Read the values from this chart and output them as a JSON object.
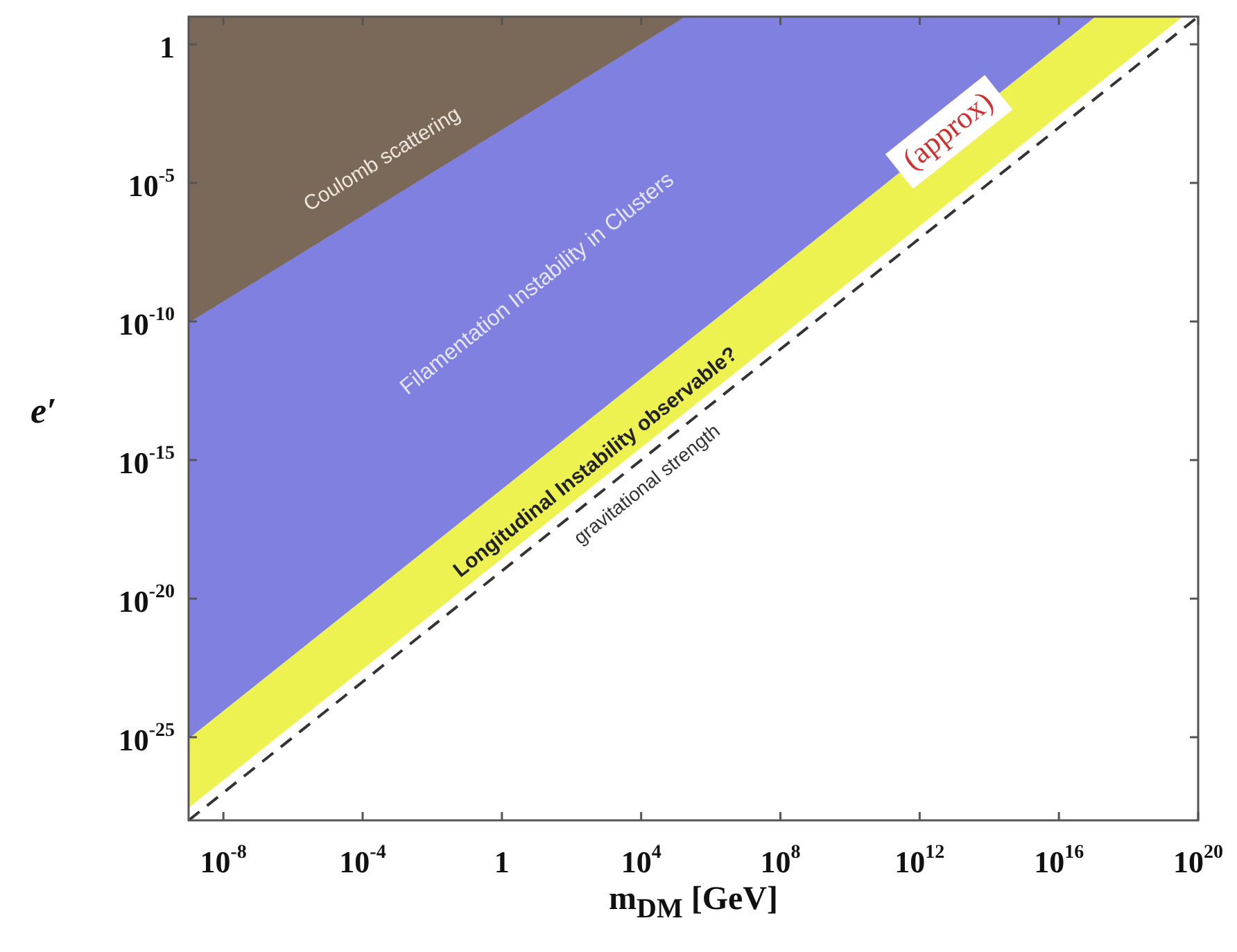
{
  "chart_data": {
    "type": "area",
    "xlabel": "m$_{DM}$ [GeV]",
    "ylabel": "e′",
    "log": "xy",
    "grid": false,
    "legend": false,
    "xlim": [
      1e-09,
      1e+20
    ],
    "ylim": [
      1e-28,
      10
    ],
    "xticks": [
      {
        "value": 1e-08,
        "label": "10$^{-8}$"
      },
      {
        "value": 0.0001,
        "label": "10$^{-4}$"
      },
      1,
      {
        "value": 10000.0,
        "label": "10$^{4}$"
      },
      {
        "value": 100000000.0,
        "label": "10$^{8}$"
      },
      {
        "value": 1000000000000.0,
        "label": "10$^{12}$"
      },
      {
        "value": 1e+16,
        "label": "10$^{16}$"
      },
      {
        "value": 1e+20,
        "label": "10$^{20}$"
      }
    ],
    "yticks": [
      1,
      {
        "value": 1e-05,
        "label": "10$^{-5}$"
      },
      {
        "value": 1e-10,
        "label": "10$^{-10}$"
      },
      {
        "value": 1e-15,
        "label": "10$^{-15}$"
      },
      {
        "value": 1e-20,
        "label": "10$^{-20}$"
      },
      {
        "value": 1e-25,
        "label": "10$^{-25}$"
      }
    ],
    "series": [
      {
        "name": "Coulomb scattering",
        "type": "area",
        "color": "#7a6858",
        "x": [
          1e-09,
          160000.0
        ],
        "values": [
          1e-10,
          10
        ]
      },
      {
        "name": "Filamentation Instability in Clusters",
        "type": "area",
        "color": "#8080e0",
        "x": [
          1e-09,
          1e+17
        ],
        "values": [
          1e-25,
          10
        ]
      },
      {
        "name": "Longitudinal Instability observable?",
        "type": "area",
        "color": "#eef250",
        "x": [
          1e-09,
          3.2e+19
        ],
        "values": [
          3.2e-28,
          10
        ]
      },
      {
        "name": "gravitational strength",
        "type": "line",
        "line_style": "dashed",
        "color": "#333333",
        "x": [
          1e-09,
          1e+20
        ],
        "values": [
          1e-28,
          10
        ]
      }
    ],
    "annotations": [
      "(approx)"
    ]
  }
}
